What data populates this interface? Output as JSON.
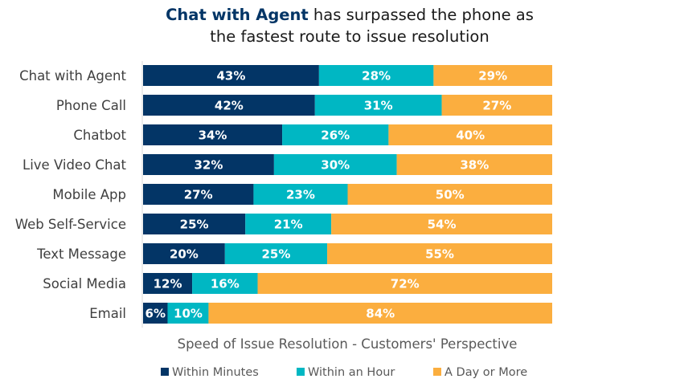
{
  "chart_data": {
    "type": "bar",
    "orientation": "horizontal",
    "stacked": true,
    "title_bold": "Chat with Agent",
    "title_rest_line1": " has surpassed the phone as",
    "title_line2": "the fastest route to issue resolution",
    "xlabel": "Speed of Issue Resolution - Customers' Perspective",
    "categories": [
      "Chat with Agent",
      "Phone Call",
      "Chatbot",
      "Live Video Chat",
      "Mobile App",
      "Web Self-Service",
      "Text Message",
      "Social Media",
      "Email"
    ],
    "series": [
      {
        "name": "Within Minutes",
        "color": "#033566",
        "values": [
          43,
          42,
          34,
          32,
          27,
          25,
          20,
          12,
          6
        ]
      },
      {
        "name": "Within an Hour",
        "color": "#00b7c3",
        "values": [
          28,
          31,
          26,
          30,
          23,
          21,
          25,
          16,
          10
        ]
      },
      {
        "name": "A Day or More",
        "color": "#fbae3f",
        "values": [
          29,
          27,
          40,
          38,
          50,
          54,
          55,
          72,
          84
        ]
      }
    ],
    "xlim": [
      0,
      100
    ],
    "unit": "%",
    "legend_position": "bottom",
    "grid": false
  }
}
